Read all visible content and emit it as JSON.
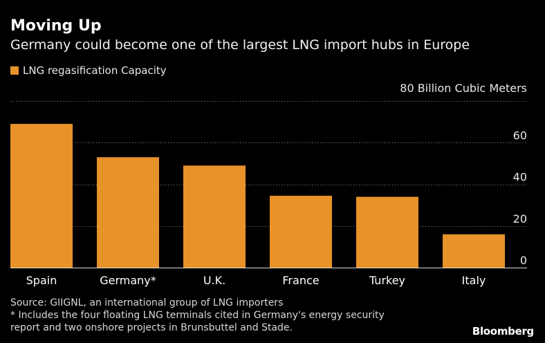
{
  "title": "Moving Up",
  "subtitle": "Germany could become one of the largest LNG import hubs in Europe",
  "colors": {
    "bar": "#E8922A",
    "grid": "#6a6a6a",
    "background": "#000000"
  },
  "chart_data": {
    "type": "bar",
    "title": "Moving Up",
    "subtitle": "Germany could become one of the largest LNG import hubs in Europe",
    "legend": [
      {
        "name": "LNG regasification Capacity",
        "color": "#E8922A"
      }
    ],
    "ylabel": "80 Billion Cubic Meters",
    "xlabel": "",
    "categories": [
      "Spain",
      "Germany*",
      "U.K.",
      "France",
      "Turkey",
      "Italy"
    ],
    "values": [
      69,
      53,
      49,
      34.5,
      34,
      16
    ],
    "ylim": [
      0,
      80
    ],
    "yticks": [
      0,
      20,
      40,
      60
    ],
    "grid": true,
    "y_axis_side": "right"
  },
  "footnotes": {
    "source": "Source: GIIGNL, an international group of LNG importers",
    "note_line1": "* Includes the four floating LNG terminals cited in Germany's energy security",
    "note_line2": "report and two onshore projects in Brunsbuttel and Stade."
  },
  "brand": "Bloomberg"
}
